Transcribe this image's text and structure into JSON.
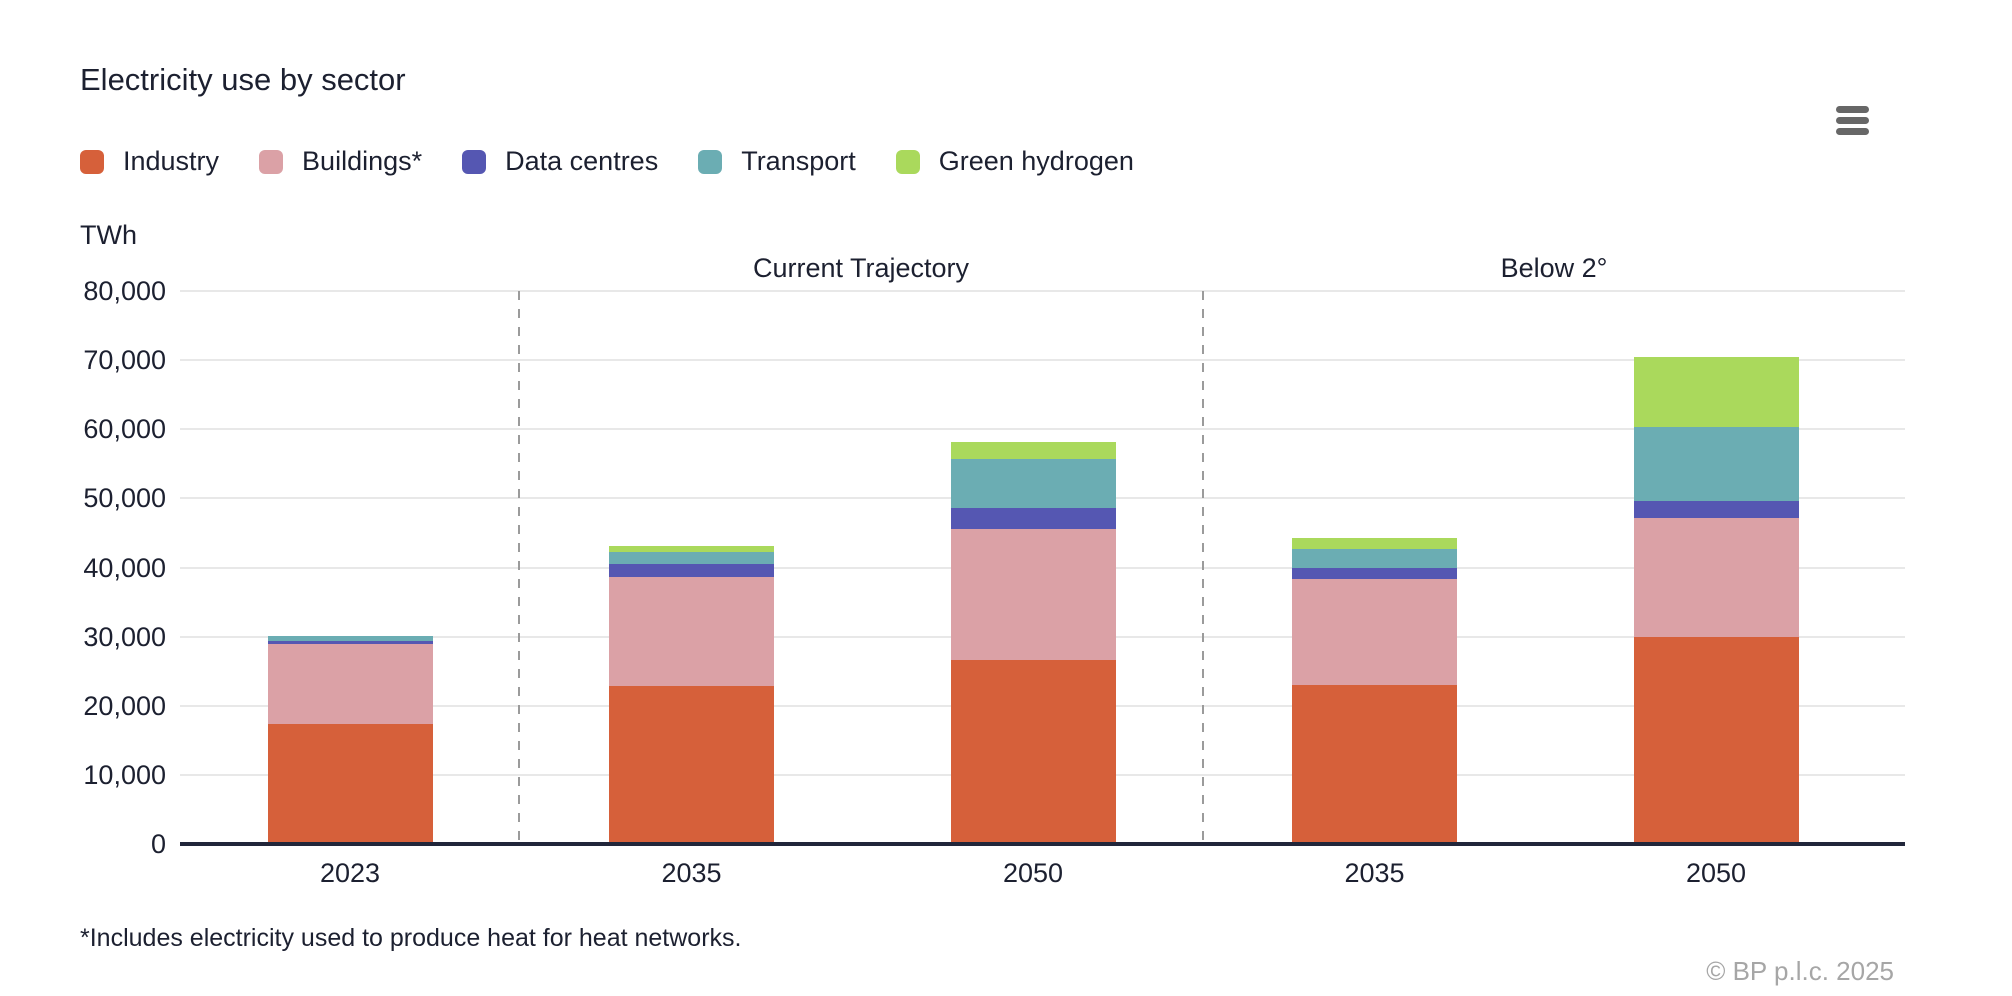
{
  "header": {
    "title": "Electricity use by sector",
    "menu_icon": "hamburger-menu"
  },
  "axis": {
    "unit_label": "TWh"
  },
  "footnote": "*Includes electricity used to produce heat for heat networks.",
  "copyright": "© BP p.l.c. 2025",
  "colors": {
    "industry": "#d6603a",
    "buildings": "#dba1a6",
    "data_centres": "#5557b2",
    "transport": "#6badb3",
    "green_hydrogen": "#aad95c",
    "text": "#1c2030",
    "gridline": "#e8e8e8",
    "axis_line": "#21263a",
    "separator": "#9b9b9b",
    "copyright_text": "#a6a6a6"
  },
  "chart_data": {
    "type": "bar",
    "stacked": true,
    "title": "Electricity use by sector",
    "ylabel": "TWh",
    "xlabel": "",
    "grid": true,
    "legend_position": "top",
    "ylim": [
      0,
      80000
    ],
    "ytick_step": 10000,
    "yticks": [
      {
        "value": 0,
        "label": "0"
      },
      {
        "value": 10000,
        "label": "10,000"
      },
      {
        "value": 20000,
        "label": "20,000"
      },
      {
        "value": 30000,
        "label": "30,000"
      },
      {
        "value": 40000,
        "label": "40,000"
      },
      {
        "value": 50000,
        "label": "50,000"
      },
      {
        "value": 60000,
        "label": "60,000"
      },
      {
        "value": 70000,
        "label": "70,000"
      },
      {
        "value": 80000,
        "label": "80,000"
      }
    ],
    "categories": [
      "2023",
      "2035",
      "2050",
      "2035",
      "2050"
    ],
    "scenario_groups": [
      {
        "label": "Current Trajectory",
        "categories": [
          "2035",
          "2050"
        ]
      },
      {
        "label": "Below 2°",
        "categories": [
          "2035",
          "2050"
        ]
      }
    ],
    "series": [
      {
        "name": "Industry",
        "color": "#d6603a",
        "values": [
          17400,
          22900,
          26600,
          23000,
          30000
        ]
      },
      {
        "name": "Buildings*",
        "color": "#dba1a6",
        "values": [
          11500,
          15800,
          19000,
          15400,
          17100
        ]
      },
      {
        "name": "Data centres",
        "color": "#5557b2",
        "values": [
          400,
          1800,
          3000,
          1600,
          2500
        ]
      },
      {
        "name": "Transport",
        "color": "#6badb3",
        "values": [
          800,
          1800,
          7100,
          2650,
          10800
        ]
      },
      {
        "name": "Green hydrogen",
        "color": "#aad95c",
        "values": [
          0,
          800,
          2400,
          1600,
          10000
        ]
      }
    ],
    "totals": [
      30100,
      43100,
      58100,
      44250,
      70400
    ]
  }
}
